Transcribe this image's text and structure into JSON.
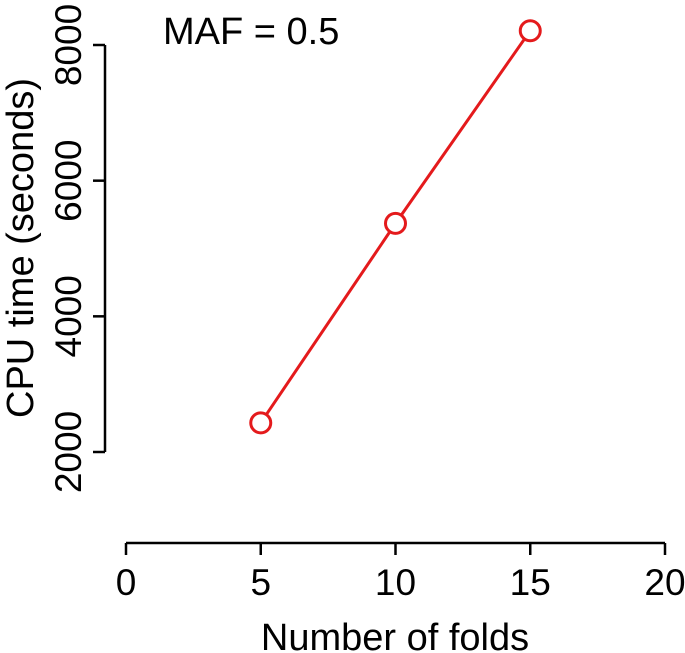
{
  "chart_data": {
    "type": "line",
    "title": "",
    "annotation": "MAF = 0.5",
    "xlabel": "Number of folds",
    "ylabel": "CPU time (seconds)",
    "xlim": [
      0,
      20
    ],
    "ylim": [
      2000,
      8000
    ],
    "x_ticks": [
      0,
      5,
      10,
      15,
      20
    ],
    "x_tick_labels": [
      "0",
      "5",
      "10",
      "15",
      "20"
    ],
    "y_ticks": [
      2000,
      4000,
      6000,
      8000
    ],
    "y_tick_labels": [
      "2000",
      "4000",
      "6000",
      "8000"
    ],
    "grid": false,
    "legend": "none",
    "series": [
      {
        "x": [
          5,
          10,
          15
        ],
        "y": [
          2430,
          5370,
          8210
        ],
        "color": "#e41a1c",
        "marker": "open-circle"
      }
    ]
  }
}
